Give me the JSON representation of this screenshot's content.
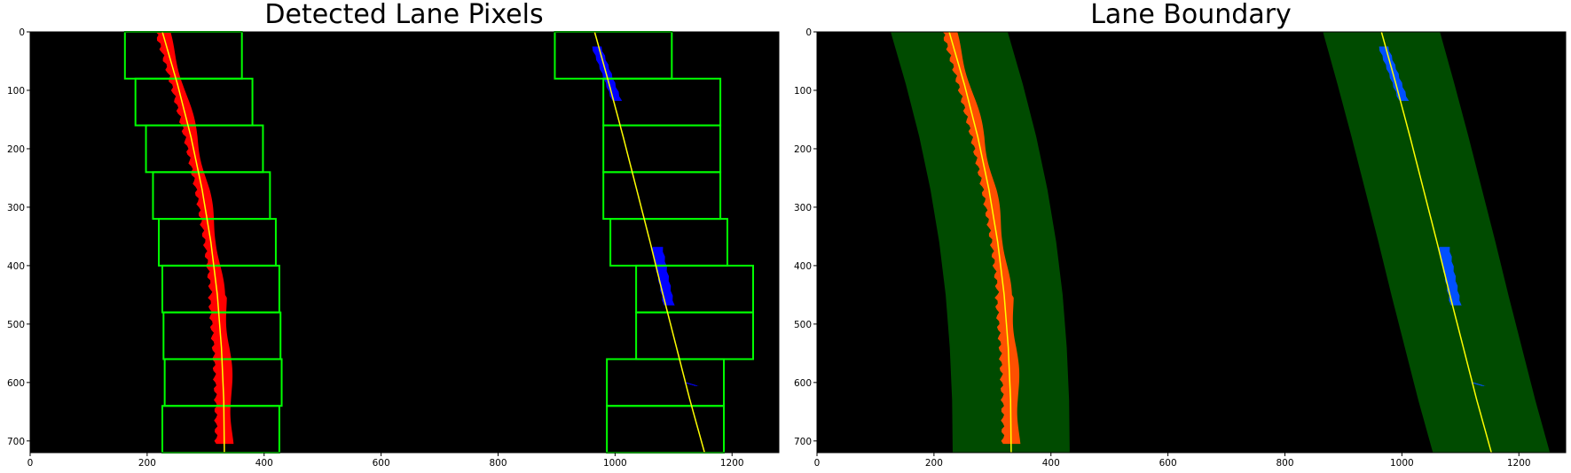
{
  "colors": {
    "background": "#000000",
    "window": "#00ff00",
    "left_lane": "#ff0000",
    "right_lane": "#0000ff",
    "fit": "#ffff00",
    "corridor": "#004b00",
    "left_lane_overlay": "#ff5000",
    "right_lane_overlay": "#0050ff"
  },
  "chart_data": [
    {
      "type": "image",
      "title": "Detected Lane Pixels",
      "xlim": [
        0,
        1280
      ],
      "ylim": [
        720,
        0
      ],
      "xticks": [
        0,
        200,
        400,
        600,
        800,
        1000,
        1200
      ],
      "yticks": [
        0,
        100,
        200,
        300,
        400,
        500,
        600,
        700
      ],
      "left_fit_x_at_y": {
        "y": [
          0,
          90,
          180,
          270,
          360,
          450,
          540,
          630,
          720
        ],
        "x": [
          226,
          252,
          275,
          294,
          309,
          320,
          327,
          331,
          332
        ]
      },
      "right_fit_x_at_y": {
        "y": [
          0,
          90,
          180,
          270,
          360,
          450,
          540,
          630,
          720
        ],
        "x": [
          965,
          990,
          1014,
          1037,
          1060,
          1082,
          1105,
          1128,
          1153
        ]
      },
      "left_windows": [
        {
          "x": [
            162,
            362
          ],
          "y": [
            0,
            80
          ]
        },
        {
          "x": [
            180,
            380
          ],
          "y": [
            80,
            160
          ]
        },
        {
          "x": [
            198,
            398
          ],
          "y": [
            160,
            240
          ]
        },
        {
          "x": [
            210,
            410
          ],
          "y": [
            240,
            320
          ]
        },
        {
          "x": [
            220,
            420
          ],
          "y": [
            320,
            400
          ]
        },
        {
          "x": [
            226,
            426
          ],
          "y": [
            400,
            480
          ]
        },
        {
          "x": [
            228,
            428
          ],
          "y": [
            480,
            560
          ]
        },
        {
          "x": [
            230,
            430
          ],
          "y": [
            560,
            640
          ]
        },
        {
          "x": [
            226,
            426
          ],
          "y": [
            640,
            720
          ]
        }
      ],
      "right_windows": [
        {
          "x": [
            897,
            1097
          ],
          "y": [
            0,
            80
          ]
        },
        {
          "x": [
            980,
            1180
          ],
          "y": [
            80,
            160
          ]
        },
        {
          "x": [
            980,
            1180
          ],
          "y": [
            160,
            240
          ]
        },
        {
          "x": [
            980,
            1180
          ],
          "y": [
            240,
            320
          ]
        },
        {
          "x": [
            992,
            1192
          ],
          "y": [
            320,
            400
          ]
        },
        {
          "x": [
            1036,
            1236
          ],
          "y": [
            400,
            480
          ]
        },
        {
          "x": [
            1036,
            1236
          ],
          "y": [
            480,
            560
          ]
        },
        {
          "x": [
            986,
            1186
          ],
          "y": [
            560,
            640
          ]
        },
        {
          "x": [
            986,
            1186
          ],
          "y": [
            640,
            720
          ]
        }
      ],
      "right_pixel_clusters": [
        {
          "y": [
            25,
            118
          ],
          "x_at_top": 968,
          "x_at_bottom": 1003,
          "half_width": 7
        },
        {
          "y": [
            368,
            468
          ],
          "x_at_top": 1072,
          "x_at_bottom": 1092,
          "half_width": 8
        },
        {
          "y": [
            600,
            606
          ],
          "x_at_top": 1120,
          "x_at_bottom": 1140,
          "half_width": 2
        }
      ]
    },
    {
      "type": "image",
      "title": "Lane Boundary",
      "xlim": [
        0,
        1280
      ],
      "ylim": [
        720,
        0
      ],
      "xticks": [
        0,
        200,
        400,
        600,
        800,
        1000,
        1200
      ],
      "yticks": [
        0,
        100,
        200,
        300,
        400,
        500,
        600,
        700
      ],
      "corridor_margin": 100,
      "left_fit_x_at_y": {
        "y": [
          0,
          90,
          180,
          270,
          360,
          450,
          540,
          630,
          720
        ],
        "x": [
          226,
          252,
          275,
          294,
          309,
          320,
          327,
          331,
          332
        ]
      },
      "right_fit_x_at_y": {
        "y": [
          0,
          90,
          180,
          270,
          360,
          450,
          540,
          630,
          720
        ],
        "x": [
          965,
          990,
          1014,
          1037,
          1060,
          1082,
          1105,
          1128,
          1153
        ]
      },
      "right_pixel_clusters": [
        {
          "y": [
            25,
            118
          ],
          "x_at_top": 968,
          "x_at_bottom": 1003,
          "half_width": 7
        },
        {
          "y": [
            368,
            468
          ],
          "x_at_top": 1072,
          "x_at_bottom": 1092,
          "half_width": 8
        },
        {
          "y": [
            600,
            606
          ],
          "x_at_top": 1120,
          "x_at_bottom": 1140,
          "half_width": 2
        }
      ]
    }
  ]
}
